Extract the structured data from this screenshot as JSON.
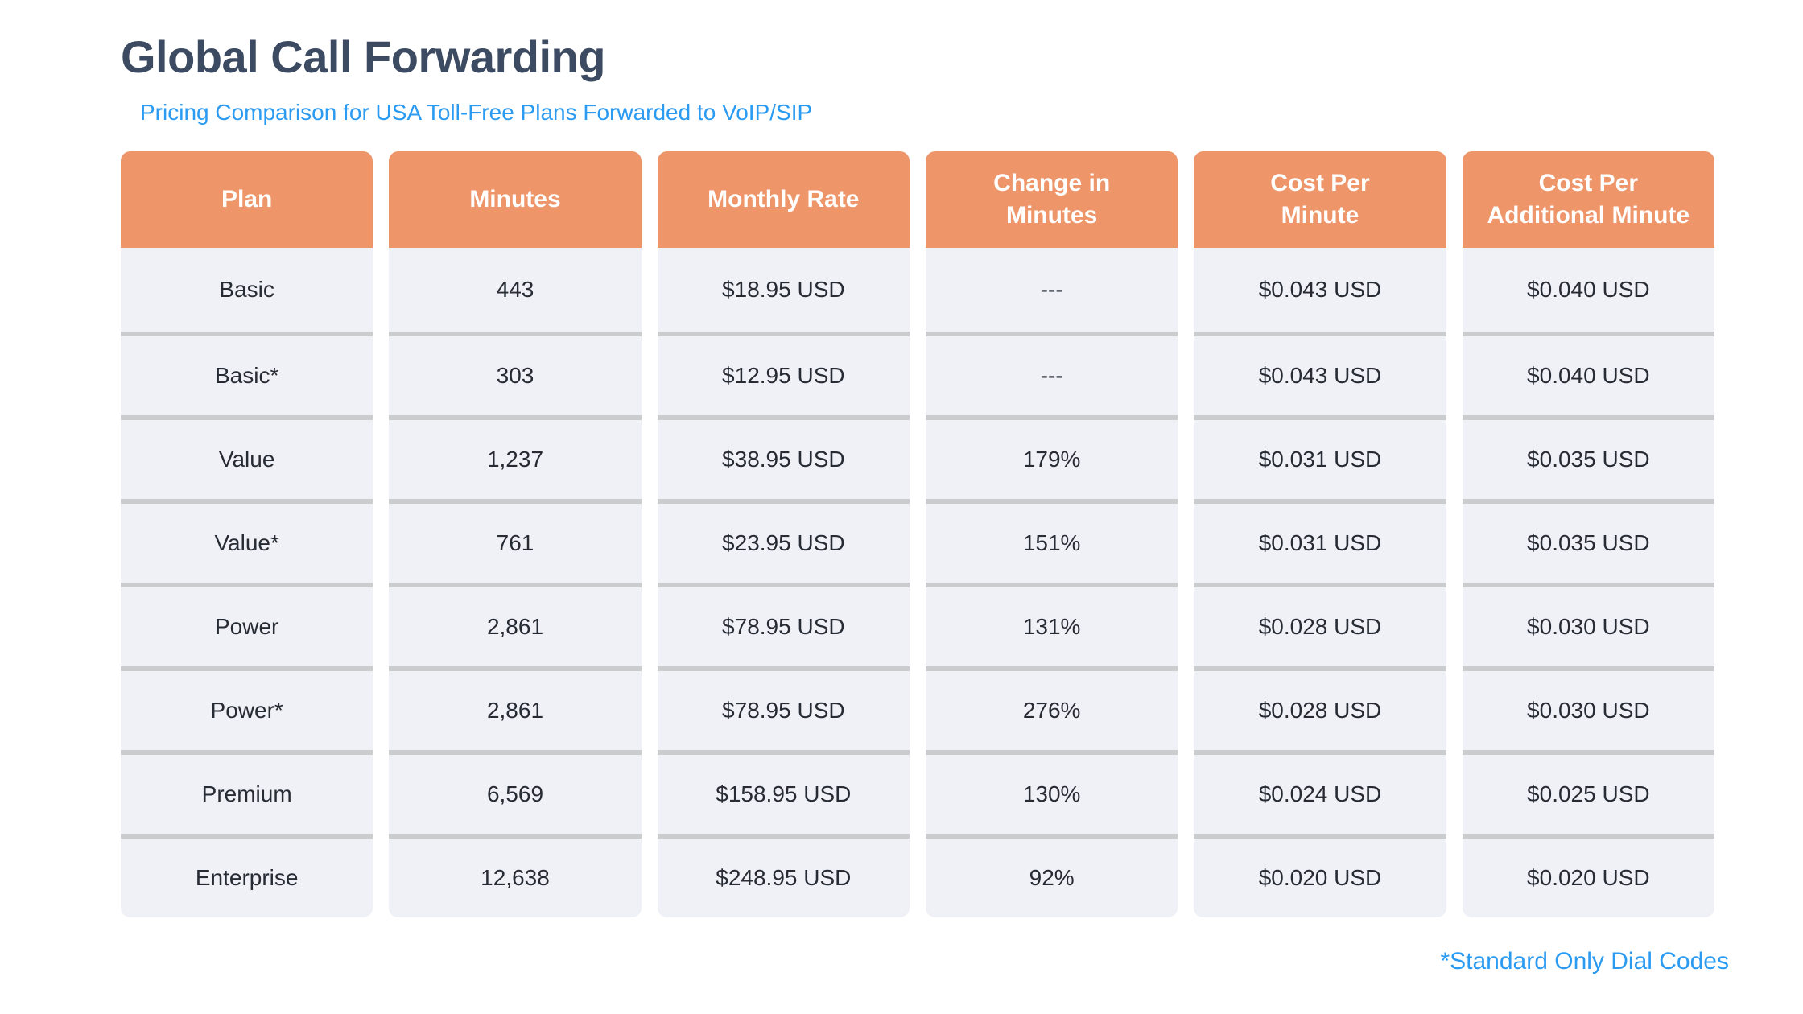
{
  "page": {
    "title": "Global Call Forwarding",
    "subtitle": "Pricing Comparison for USA Toll-Free Plans Forwarded to VoIP/SIP",
    "footnote": "*Standard Only Dial Codes"
  },
  "colors": {
    "title_text": "#3c4b61",
    "accent_blue": "#2b9bf2",
    "header_bg": "#ee9569",
    "header_text": "#ffffff",
    "cell_bg": "#eff1f6",
    "cell_text": "#272b33",
    "row_divider": "#cbcccd",
    "page_bg": "#ffffff"
  },
  "chart_data": {
    "type": "table",
    "title": "Global Call Forwarding",
    "subtitle": "Pricing Comparison for USA Toll-Free Plans Forwarded to VoIP/SIP",
    "footnote": "*Standard Only Dial Codes",
    "columns": [
      "Plan",
      "Minutes",
      "Monthly Rate",
      "Change in\nMinutes",
      "Cost Per\nMinute",
      "Cost Per\nAdditional Minute"
    ],
    "rows": [
      [
        "Basic",
        "443",
        "$18.95 USD",
        "---",
        "$0.043 USD",
        "$0.040 USD"
      ],
      [
        "Basic*",
        "303",
        "$12.95 USD",
        "---",
        "$0.043 USD",
        "$0.040 USD"
      ],
      [
        "Value",
        "1,237",
        "$38.95 USD",
        "179%",
        "$0.031 USD",
        "$0.035 USD"
      ],
      [
        "Value*",
        "761",
        "$23.95 USD",
        "151%",
        "$0.031 USD",
        "$0.035 USD"
      ],
      [
        "Power",
        "2,861",
        "$78.95 USD",
        "131%",
        "$0.028 USD",
        "$0.030 USD"
      ],
      [
        "Power*",
        "2,861",
        "$78.95 USD",
        "276%",
        "$0.028 USD",
        "$0.030 USD"
      ],
      [
        "Premium",
        "6,569",
        "$158.95 USD",
        "130%",
        "$0.024 USD",
        "$0.025 USD"
      ],
      [
        "Enterprise",
        "12,638",
        "$248.95 USD",
        "92%",
        "$0.020 USD",
        "$0.020 USD"
      ]
    ]
  }
}
